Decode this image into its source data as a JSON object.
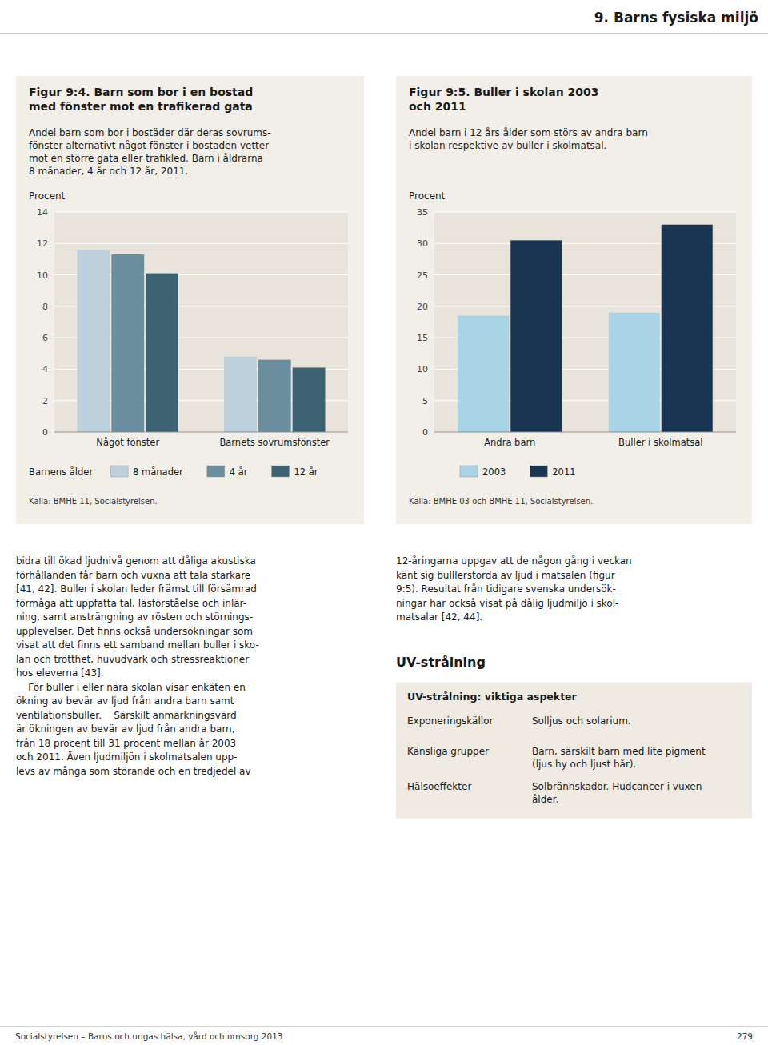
{
  "page_title": "9. Barns fysiska miljö",
  "page_number": "279",
  "footer_text": "Socialstyrelsen – Barns och ungas hälsa, vård och omsorg 2013",
  "chart_data": [
    {
      "type": "bar",
      "title": "Figur 9:4. Barn som bor i en bostad\nmed fönster mot en trafikerad gata",
      "subtitle": "Andel barn som bor i bostäder där deras sovrums-\nfönster alternativt något fönster i bostaden vetter\nmot en större gata eller trafikled. Barn i åldrarna\n8 månader, 4 år och 12 år, 2011.",
      "y_label": "Procent",
      "categories": [
        "Något fönster",
        "Barnets sovrumsfönster"
      ],
      "series": [
        {
          "name": "8 månader",
          "color": "#bdd1dc",
          "values": [
            11.6,
            4.8
          ]
        },
        {
          "name": "4 år",
          "color": "#6b8e9e",
          "values": [
            11.3,
            4.6
          ]
        },
        {
          "name": "12 år",
          "color": "#3d6272",
          "values": [
            10.1,
            4.1
          ]
        }
      ],
      "legend_title": "Barnens ålder",
      "ylim": [
        0,
        14
      ],
      "yticks": [
        0,
        2,
        4,
        6,
        8,
        10,
        12,
        14
      ],
      "grid": true,
      "source": "Källa: BMHE 11, Socialstyrelsen."
    },
    {
      "type": "bar",
      "title": "Figur 9:5. Buller i skolan 2003\noch 2011",
      "subtitle": "Andel barn i 12 års ålder som störs av andra barn\ni skolan respektive av buller i skolmatsal.",
      "y_label": "Procent",
      "categories": [
        "Andra barn",
        "Buller i skolmatsal"
      ],
      "series": [
        {
          "name": "2003",
          "color": "#a8d4e6",
          "values": [
            18.5,
            19.0
          ]
        },
        {
          "name": "2011",
          "color": "#1a3554",
          "values": [
            30.5,
            33.0
          ]
        }
      ],
      "ylim": [
        0,
        35
      ],
      "yticks": [
        0,
        5,
        10,
        15,
        20,
        25,
        30,
        35
      ],
      "grid": true,
      "source": "Källa: BMHE 03 och BMHE 11, Socialstyrelsen."
    }
  ],
  "body_col1_lines": [
    "bidra till ökad ljudnivå genom att dåliga akustiska",
    "förhållanden får barn och vuxna att tala starkare",
    "[41, 42]. Buller i skolan leder främst till försämrad",
    "förmåga att uppfatta tal, läsförståelse och inlär-",
    "ning, samt ansträngning av rösten och störnings-",
    "upplevelser. Det finns också undersökningar som",
    "visat att det finns ett samband mellan buller i sko-",
    "lan och trötthet, huvudvärk och stressreaktioner",
    "hos eleverna [43].",
    "    För buller i eller nära skolan visar enkäten en",
    "ökning av bevär av ljud från andra barn samt",
    "ventilationsbuller.    Särskilt anmärkningsvärd",
    "är ökningen av bevär av ljud från andra barn,",
    "från 18 procent till 31 procent mellan år 2003",
    "och 2011. Även ljudmiljön i skolmatsalen upp-",
    "levs av många som störande och en tredjedel av"
  ],
  "body_col2_lines": [
    "12-åringarna uppgav att de någon gång i veckan",
    "känt sig bulllerstörda av ljud i matsalen (figur",
    "9:5). Resultat från tidigare svenska undersök-",
    "ningar har också visat på dålig ljudmiljö i skol-",
    "matsalar [42, 44]."
  ],
  "uv_title": "UV-strålning",
  "uv_box_title": "UV-strålning: viktiga aspekter",
  "uv_rows": [
    [
      "Exponeringskällor",
      "Solljus och solarium."
    ],
    [
      "Känsliga grupper",
      "Barn, särskilt barn med lite pigment\n(ljus hy och ljust hår)."
    ],
    [
      "Hälsoeffekter",
      "Solbrännskador. Hudcancer i vuxen\nålder."
    ]
  ]
}
